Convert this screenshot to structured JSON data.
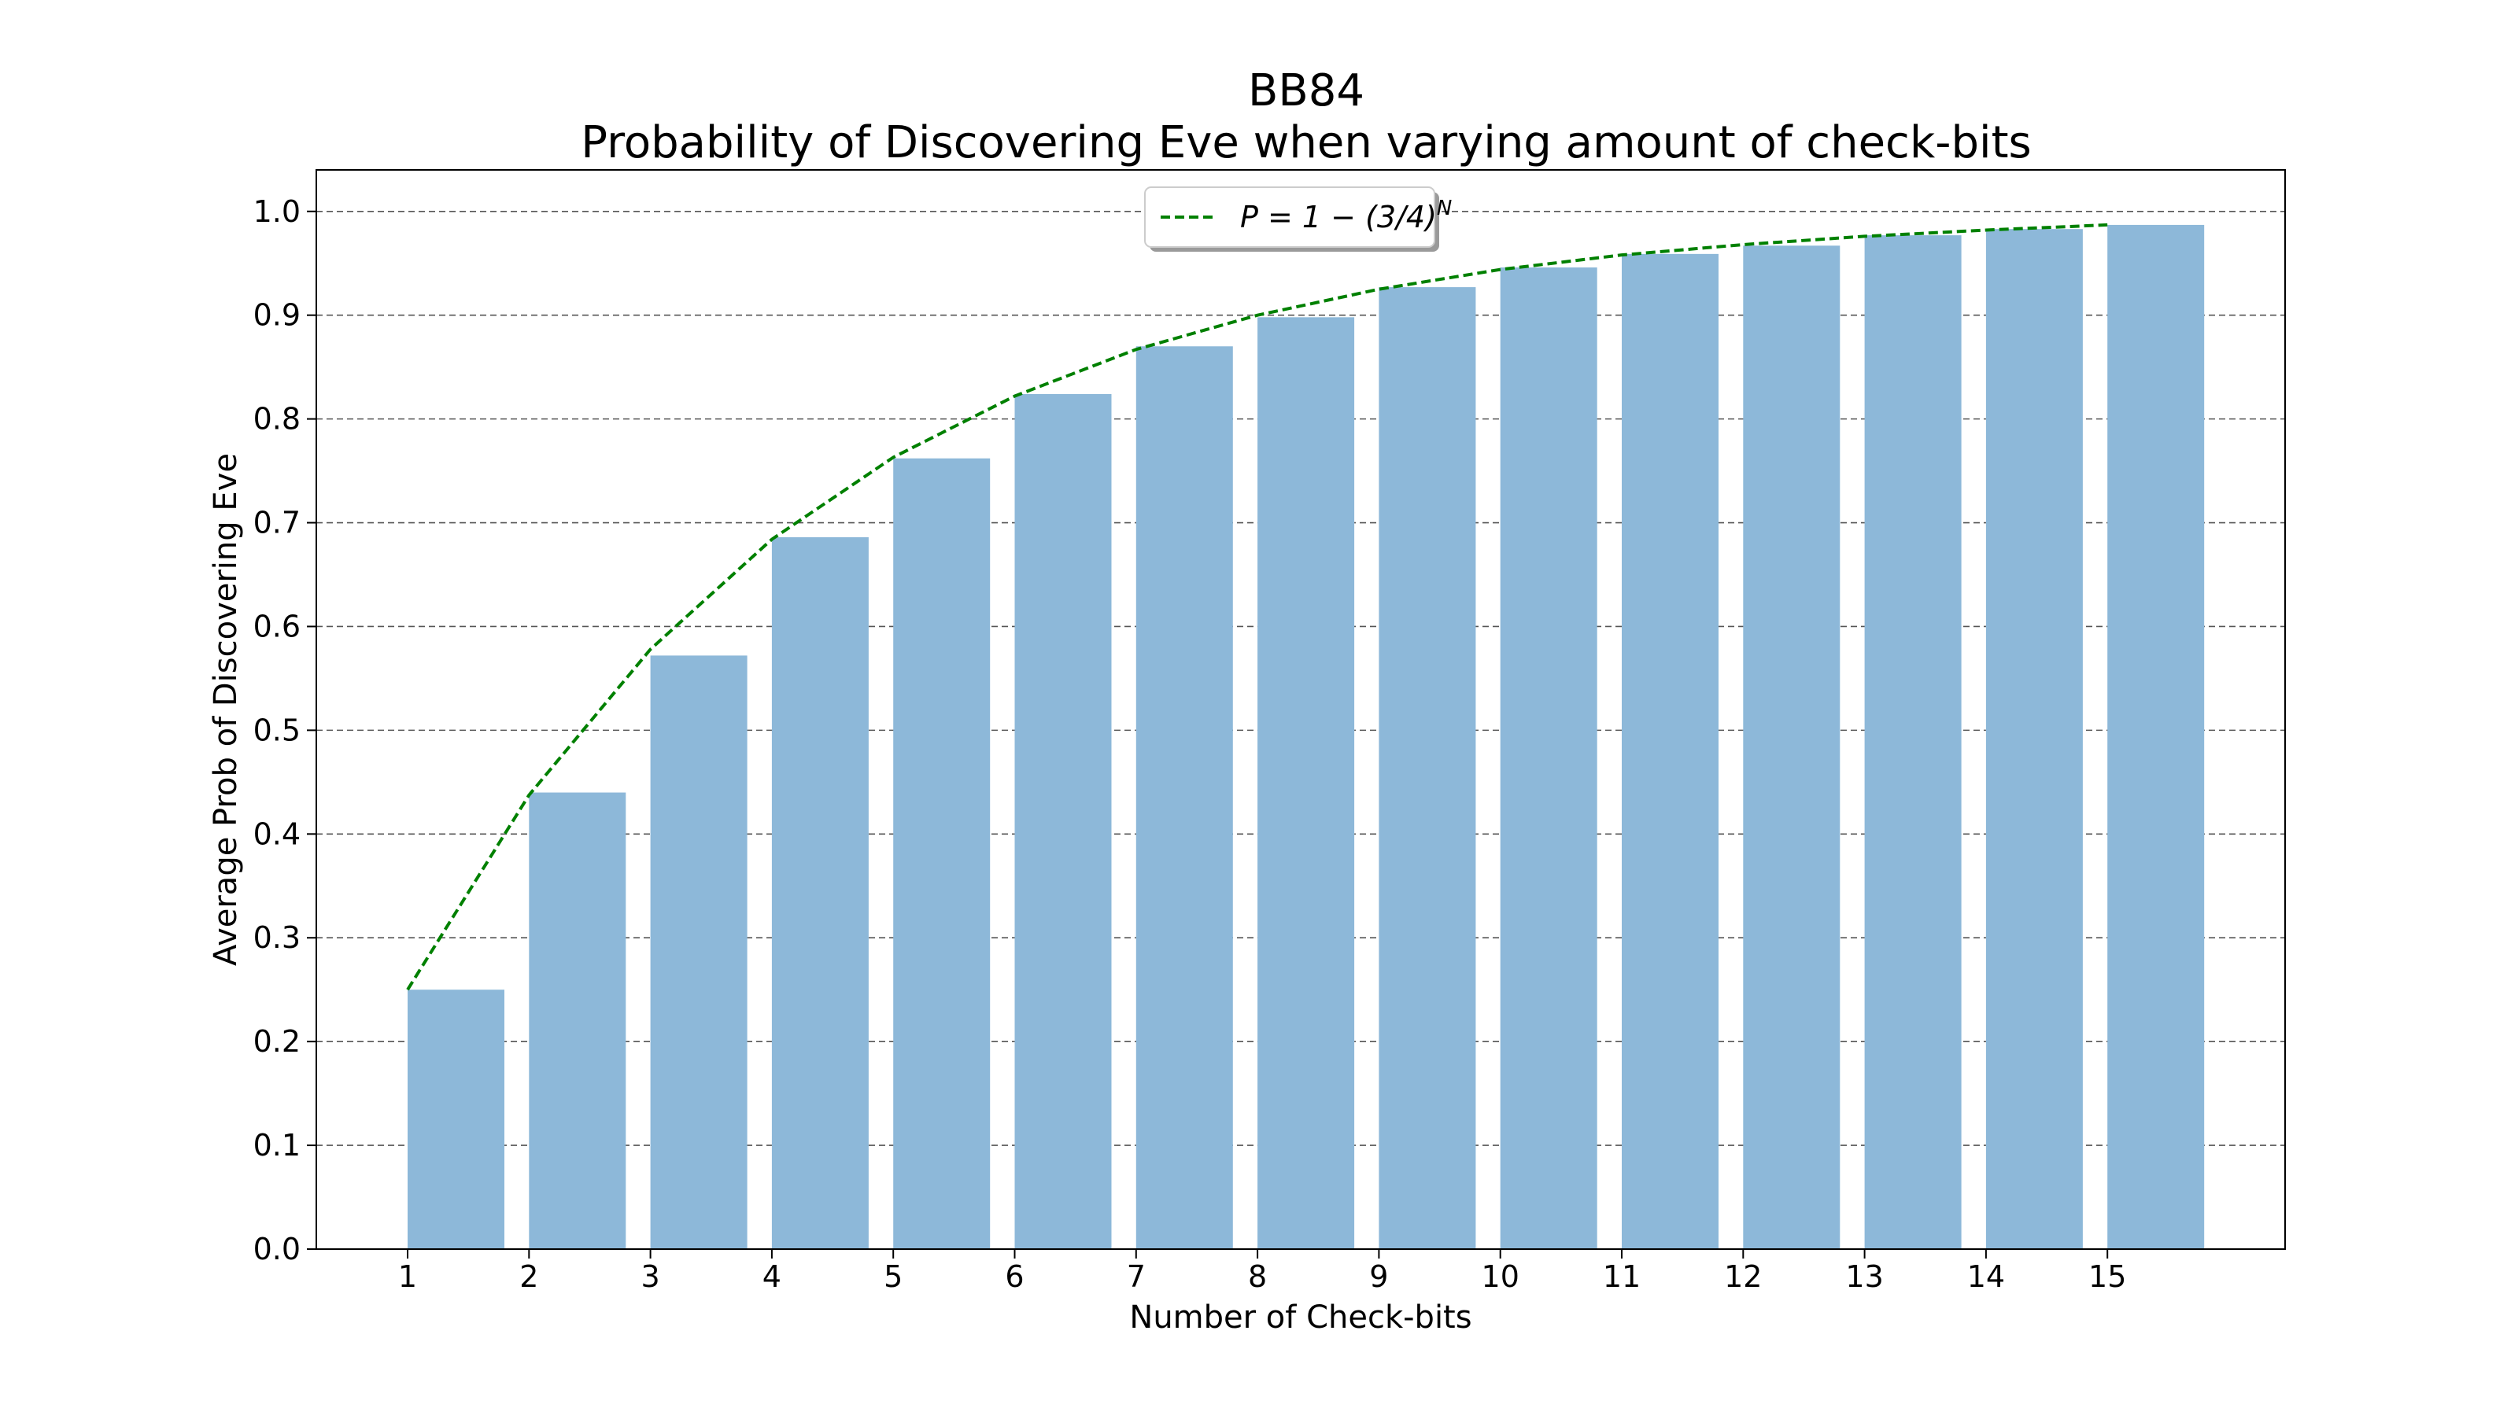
{
  "chart_data": {
    "type": "bar",
    "title_line1": "BB84",
    "title_line2": "Probability of Discovering Eve when varying amount of check-bits",
    "xlabel": "Number of Check-bits",
    "ylabel": "Average Prob of Discovering Eve",
    "categories": [
      1,
      2,
      3,
      4,
      5,
      6,
      7,
      8,
      9,
      10,
      11,
      12,
      13,
      14,
      15
    ],
    "x_tick_labels": [
      "1",
      "2",
      "3",
      "4",
      "5",
      "6",
      "7",
      "8",
      "9",
      "10",
      "11",
      "12",
      "13",
      "14",
      "15"
    ],
    "values": [
      0.25,
      0.44,
      0.572,
      0.686,
      0.762,
      0.824,
      0.87,
      0.898,
      0.927,
      0.946,
      0.959,
      0.967,
      0.977,
      0.983,
      0.987
    ],
    "series": [
      {
        "name": "P = 1 − (3/4)^N",
        "type": "line",
        "style": "dashed",
        "color": "#008000",
        "values": [
          0.25,
          0.4375,
          0.578,
          0.684,
          0.763,
          0.822,
          0.867,
          0.9,
          0.925,
          0.944,
          0.958,
          0.968,
          0.976,
          0.982,
          0.987
        ]
      }
    ],
    "legend": {
      "placement": "top-center",
      "label_main": "P = 1 − (3/4)",
      "label_sup": "N"
    },
    "ylim": [
      0,
      1.04
    ],
    "y_ticks": [
      0.0,
      0.1,
      0.2,
      0.3,
      0.4,
      0.5,
      0.6,
      0.7,
      0.8,
      0.9,
      1.0
    ],
    "y_tick_labels": [
      "0.0",
      "0.1",
      "0.2",
      "0.3",
      "0.4",
      "0.5",
      "0.6",
      "0.7",
      "0.8",
      "0.9",
      "1.0"
    ],
    "grid": "horizontal-dashed",
    "bar_color": "#8db8d9",
    "line_color": "#008000"
  }
}
